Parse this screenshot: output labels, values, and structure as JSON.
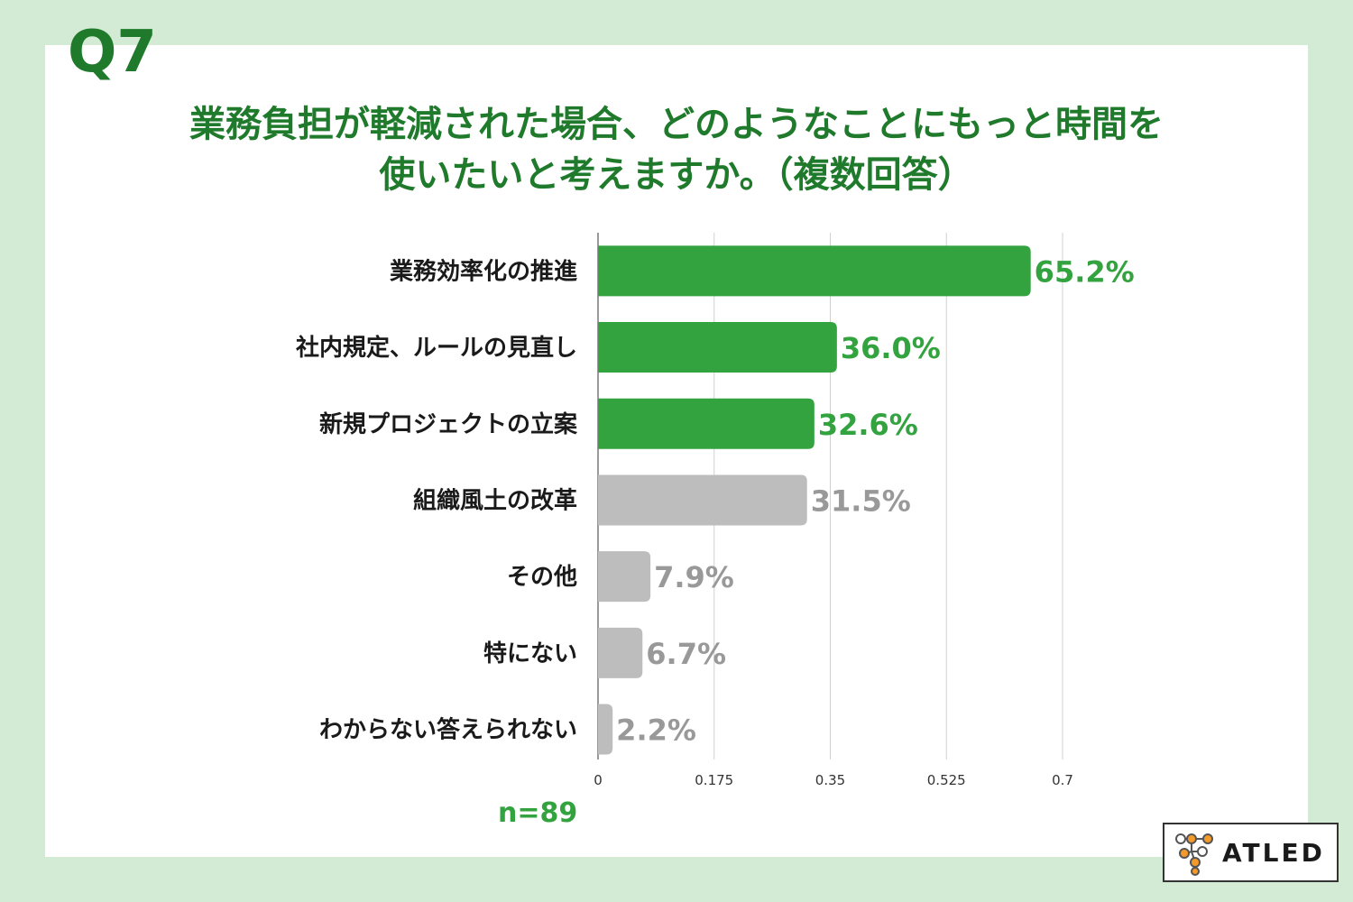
{
  "question_number": "Q7",
  "title_lines": [
    "業務負担が軽減された場合、どのようなことにもっと時間を",
    "使いたいと考えますか。（複数回答）"
  ],
  "colors": {
    "background": "#d3ead5",
    "title": "#1f7a2c",
    "highlight_bar": "#33a33f",
    "other_bar": "#bdbdbd",
    "other_label": "#999999"
  },
  "chart_data": {
    "type": "bar",
    "orientation": "horizontal",
    "categories": [
      "業務効率化の推進",
      "社内規定、ルールの見直し",
      "新規プロジェクトの立案",
      "組織風土の改革",
      "その他",
      "特にない",
      "わからない答えられない"
    ],
    "values": [
      0.652,
      0.36,
      0.326,
      0.315,
      0.079,
      0.067,
      0.022
    ],
    "value_labels": [
      "65.2%",
      "36.0%",
      "32.6%",
      "31.5%",
      "7.9%",
      "6.7%",
      "2.2%"
    ],
    "highlighted": [
      true,
      true,
      true,
      false,
      false,
      false,
      false
    ],
    "xlim": [
      0,
      0.7
    ],
    "x_ticks": [
      0,
      0.175,
      0.35,
      0.525,
      0.7
    ],
    "x_tick_labels": [
      "0",
      "0.175",
      "0.35",
      "0.525",
      "0.7"
    ],
    "grid": true
  },
  "sample_size": "n=89",
  "logo": {
    "text": "ATLED"
  }
}
